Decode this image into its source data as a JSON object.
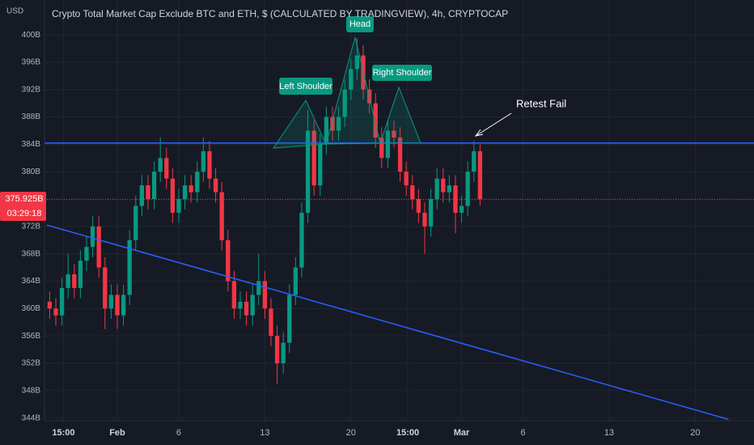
{
  "chart_data": {
    "type": "candlestick",
    "title": "Crypto Total Market Cap Exclude BTC and ETH, $ (CALCULATED BY TRADINGVIEW), 4h, CRYPTOCAP",
    "y_axis_label": "USD",
    "up_color": "#089981",
    "down_color": "#f23645",
    "grid": true,
    "x": [
      -5.5,
      -5,
      -4.5,
      -4,
      -3.5,
      -3,
      -2.5,
      -2,
      -1.5,
      -1,
      -0.5,
      0,
      0.5,
      1,
      1.5,
      2,
      2.5,
      3,
      3.5,
      4,
      4.5,
      5,
      5.5,
      6,
      6.5,
      7,
      7.5,
      8,
      8.5,
      9,
      9.5,
      10,
      10.5,
      11,
      11.5,
      12,
      12.5,
      13,
      13.5,
      14,
      14.5,
      15,
      15.5,
      16,
      16.5,
      17,
      17.5,
      18,
      18.5,
      19,
      19.5,
      20,
      20.5,
      21,
      21.5,
      22,
      22.5,
      23,
      23.5,
      24,
      24.5,
      25,
      25.5,
      26,
      26.5,
      27,
      27.5,
      28,
      28.5,
      29,
      29.5
    ],
    "open": [
      361,
      360,
      359,
      363,
      365,
      363,
      367,
      369,
      372,
      366,
      360,
      362,
      359,
      362,
      370,
      375,
      378,
      376,
      380,
      382,
      379,
      374,
      376,
      378,
      377,
      380,
      383,
      379,
      377,
      370,
      364,
      360,
      361,
      359,
      362,
      364,
      360,
      356,
      352,
      355,
      362,
      366,
      374,
      386,
      378,
      384,
      388,
      386,
      388,
      392,
      395,
      397,
      392,
      390,
      385,
      382,
      386,
      385,
      380,
      378,
      376,
      374,
      372,
      376,
      379,
      377,
      378,
      374,
      375,
      380,
      383
    ],
    "high": [
      362.5,
      361.5,
      364.5,
      368,
      366.5,
      368.5,
      370.5,
      373.5,
      373.5,
      367.5,
      363.5,
      363.5,
      363.5,
      371.5,
      376.5,
      379.5,
      379.5,
      381.5,
      385,
      383.5,
      380.5,
      377.5,
      379.5,
      379.5,
      381.5,
      385,
      384.5,
      380.5,
      378.5,
      371.5,
      365.5,
      362.5,
      362.5,
      363.5,
      368,
      365.5,
      361.5,
      357.5,
      356.5,
      363.5,
      367.5,
      375.5,
      389,
      387.5,
      385.5,
      389.5,
      389.5,
      389.5,
      393.5,
      396.5,
      399.5,
      398.5,
      393.5,
      391.5,
      386.5,
      387.5,
      387.5,
      386.5,
      381.5,
      379.5,
      377.5,
      375.5,
      377.5,
      380.5,
      380.5,
      379.5,
      379.5,
      376.5,
      381.5,
      384.5,
      384
    ],
    "low": [
      358.5,
      357.5,
      357.5,
      361.5,
      361.5,
      361.5,
      365.5,
      367.5,
      364.5,
      357,
      358.5,
      357,
      357.5,
      360.5,
      368.5,
      373.5,
      374.5,
      374.5,
      378.5,
      377.5,
      372.5,
      372.5,
      374.5,
      375.5,
      375.5,
      378.5,
      377.5,
      375.5,
      368.5,
      362.5,
      358.5,
      358.5,
      357.5,
      357.5,
      360.5,
      358.5,
      354.5,
      349,
      350.5,
      353.5,
      360.5,
      364.5,
      372.5,
      376.5,
      376.5,
      382.5,
      384.5,
      384.5,
      386.5,
      390.5,
      393.5,
      390.5,
      388.5,
      383.5,
      380.5,
      380.5,
      383.5,
      378.5,
      376.5,
      374.5,
      372.5,
      368,
      370.5,
      374.5,
      375.5,
      375.5,
      371,
      372.5,
      373.5,
      378.5,
      375
    ],
    "close": [
      360,
      359,
      363,
      365,
      363,
      367,
      369,
      372,
      366,
      360,
      362,
      359,
      362,
      370,
      375,
      378,
      376,
      380,
      382,
      379,
      374,
      376,
      378,
      377,
      380,
      383,
      379,
      377,
      370,
      364,
      360,
      361,
      359,
      362,
      364,
      360,
      356,
      352,
      355,
      362,
      366,
      374,
      386,
      378,
      384,
      388,
      386,
      388,
      392,
      395,
      397,
      392,
      390,
      385,
      382,
      386,
      385,
      380,
      378,
      376,
      374,
      372,
      376,
      379,
      377,
      378,
      374,
      375,
      380,
      383,
      376
    ],
    "xlim": [
      -5.92,
      51.78
    ],
    "xticks": [
      {
        "value": -4.375,
        "label": "15:00"
      },
      {
        "value": 0,
        "label": "Feb"
      },
      {
        "value": 5,
        "label": "6"
      },
      {
        "value": 12,
        "label": "13"
      },
      {
        "value": 19,
        "label": "20"
      },
      {
        "value": 23.625,
        "label": "15:00"
      },
      {
        "value": 28,
        "label": "Mar"
      },
      {
        "value": 33,
        "label": "6"
      },
      {
        "value": 40,
        "label": "13"
      },
      {
        "value": 47,
        "label": "20"
      }
    ],
    "ylim": [
      343.6,
      405.1
    ],
    "yticks": [
      {
        "value": 344,
        "label": "344B"
      },
      {
        "value": 348,
        "label": "348B"
      },
      {
        "value": 352,
        "label": "352B"
      },
      {
        "value": 356,
        "label": "356B"
      },
      {
        "value": 360,
        "label": "360B"
      },
      {
        "value": 364,
        "label": "364B"
      },
      {
        "value": 368,
        "label": "368B"
      },
      {
        "value": 372,
        "label": "372B"
      },
      {
        "value": 376,
        "label": "376B"
      },
      {
        "value": 380,
        "label": "380B"
      },
      {
        "value": 384,
        "label": "384B"
      },
      {
        "value": 388,
        "label": "388B"
      },
      {
        "value": 392,
        "label": "392B"
      },
      {
        "value": 396,
        "label": "396B"
      },
      {
        "value": 400,
        "label": "400B"
      }
    ],
    "last_price": {
      "value": 375.925,
      "label": "375.925B"
    },
    "countdown": "03:29:18",
    "horizontal_line": {
      "value": 384.2,
      "color": "#2962ff"
    },
    "trend_line": {
      "x": [
        -5.72,
        49.7
      ],
      "y": [
        372.2,
        343.8
      ],
      "color": "#2962ff"
    },
    "annotations": [
      "Left Shoulder",
      "Head",
      "Right Shoulder",
      "Retest Fail"
    ]
  }
}
